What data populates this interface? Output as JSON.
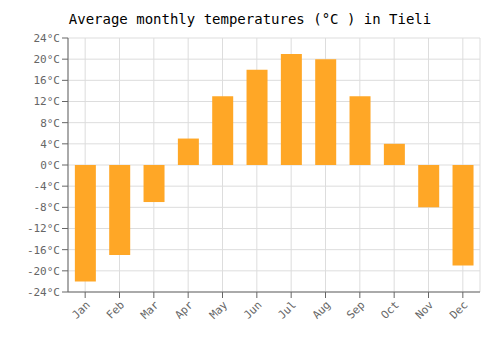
{
  "chart_data": {
    "type": "bar",
    "title": "Average monthly temperatures (°C ) in Tieli",
    "categories": [
      "Jan",
      "Feb",
      "Mar",
      "Apr",
      "May",
      "Jun",
      "Jul",
      "Aug",
      "Sep",
      "Oct",
      "Nov",
      "Dec"
    ],
    "values": [
      -22,
      -17,
      -7,
      5,
      13,
      18,
      21,
      20,
      13,
      4,
      -8,
      -19
    ],
    "color": "#FFA726",
    "ylim": [
      -24,
      24
    ],
    "yticks": [
      {
        "value": -24,
        "label": "-24°C"
      },
      {
        "value": -20,
        "label": "-20°C"
      },
      {
        "value": -16,
        "label": "-16°C"
      },
      {
        "value": -12,
        "label": "-12°C"
      },
      {
        "value": -8,
        "label": "-8°C"
      },
      {
        "value": -4,
        "label": "-4°C"
      },
      {
        "value": 0,
        "label": "0°C"
      },
      {
        "value": 4,
        "label": "4°C"
      },
      {
        "value": 8,
        "label": "8°C"
      },
      {
        "value": 12,
        "label": "12°C"
      },
      {
        "value": 16,
        "label": "16°C"
      },
      {
        "value": 20,
        "label": "20°C"
      },
      {
        "value": 24,
        "label": "24°C"
      }
    ],
    "grid": true
  }
}
